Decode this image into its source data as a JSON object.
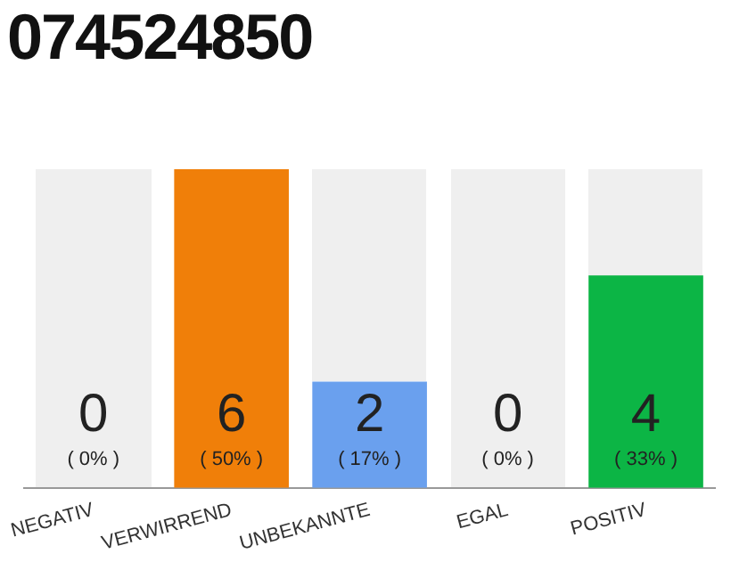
{
  "chart_data": {
    "type": "bar",
    "title": "074524850",
    "categories": [
      "NEGATIV",
      "VERWIRREND",
      "UNBEKANNTE",
      "EGAL",
      "POSITIV"
    ],
    "values": [
      0,
      6,
      2,
      0,
      4
    ],
    "colors": [
      "#bdbdbd",
      "#f07f09",
      "#6aa0ee",
      "#bdbdbd",
      "#0cb545"
    ],
    "data_labels": true,
    "annotations": [
      "( 0% )",
      "( 50% )",
      "( 17% )",
      "( 0% )",
      "( 33% )"
    ],
    "tick_labels": "x",
    "grid": false,
    "legend": false
  }
}
